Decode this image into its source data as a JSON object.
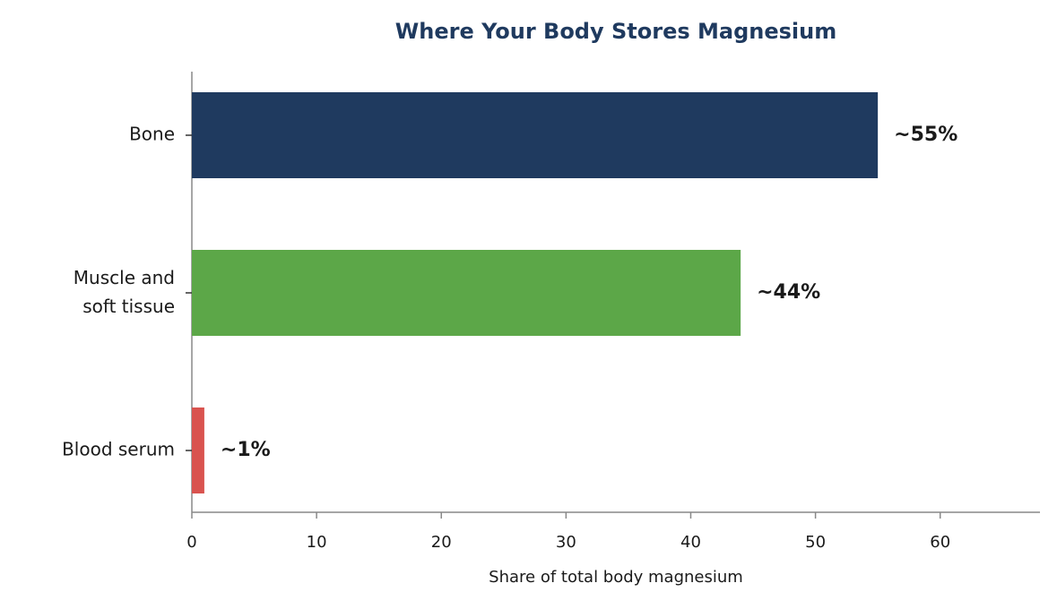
{
  "chart_data": {
    "type": "barh",
    "title": "Where Your Body Stores Magnesium",
    "x_label": "Share of total body magnesium",
    "categories": [
      "Bone",
      "Muscle and\nsoft tissue",
      "Blood serum"
    ],
    "values": [
      55,
      44,
      1
    ],
    "value_labels": [
      "~55%",
      "~44%",
      "~1%"
    ],
    "colors": [
      "#1f3a5f",
      "#5ca748",
      "#d9534f"
    ],
    "xlim": [
      0,
      68
    ],
    "xticks": [
      0,
      10,
      20,
      30,
      40,
      50,
      60
    ],
    "grid": false
  }
}
